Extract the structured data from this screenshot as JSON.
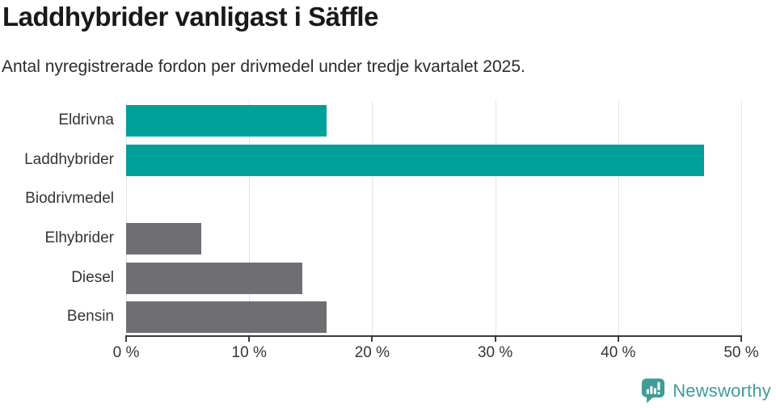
{
  "title": "Laddhybrider vanligast i Säffle",
  "subtitle": "Antal nyregistrerade fordon per drivmedel under tredje kvartalet 2025.",
  "chart_data": {
    "type": "bar",
    "orientation": "horizontal",
    "title": "Laddhybrider vanligast i Säffle",
    "subtitle": "Antal nyregistrerade fordon per drivmedel under tredje kvartalet 2025.",
    "categories": [
      "Eldrivna",
      "Laddhybrider",
      "Biodrivmedel",
      "Elhybrider",
      "Diesel",
      "Bensin"
    ],
    "values": [
      16.3,
      47.0,
      0,
      6.1,
      14.3,
      16.3
    ],
    "unit": "%",
    "bar_colors": [
      "#00a09a",
      "#00a09a",
      "#6e6e73",
      "#6e6e73",
      "#6e6e73",
      "#6e6e73"
    ],
    "highlight_color": "#00a09a",
    "default_color": "#6e6e73",
    "xlim": [
      0,
      50
    ],
    "x_ticks": [
      0,
      10,
      20,
      30,
      40,
      50
    ],
    "x_tick_labels": [
      "0 %",
      "10 %",
      "20 %",
      "30 %",
      "40 %",
      "50 %"
    ],
    "grid": "vertical-only",
    "legend": "none"
  },
  "colors": {
    "grid": "#e1e1e1",
    "axis": "#3a3a40",
    "title_text": "#191919",
    "subtitle_text": "#2b2b2b",
    "label_text": "#333338",
    "logo_teal": "#3e9d98"
  },
  "footer": {
    "brand": "Newsworthy"
  }
}
